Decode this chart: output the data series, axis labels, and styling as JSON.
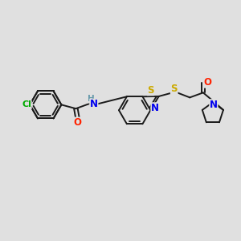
{
  "bg_color": "#e0e0e0",
  "bond_color": "#1a1a1a",
  "atom_colors": {
    "Cl": "#00aa00",
    "O": "#ff2200",
    "N": "#0000ee",
    "S": "#ccaa00",
    "H": "#6699aa",
    "C": "#1a1a1a"
  },
  "figsize": [
    3.0,
    3.0
  ],
  "dpi": 100
}
